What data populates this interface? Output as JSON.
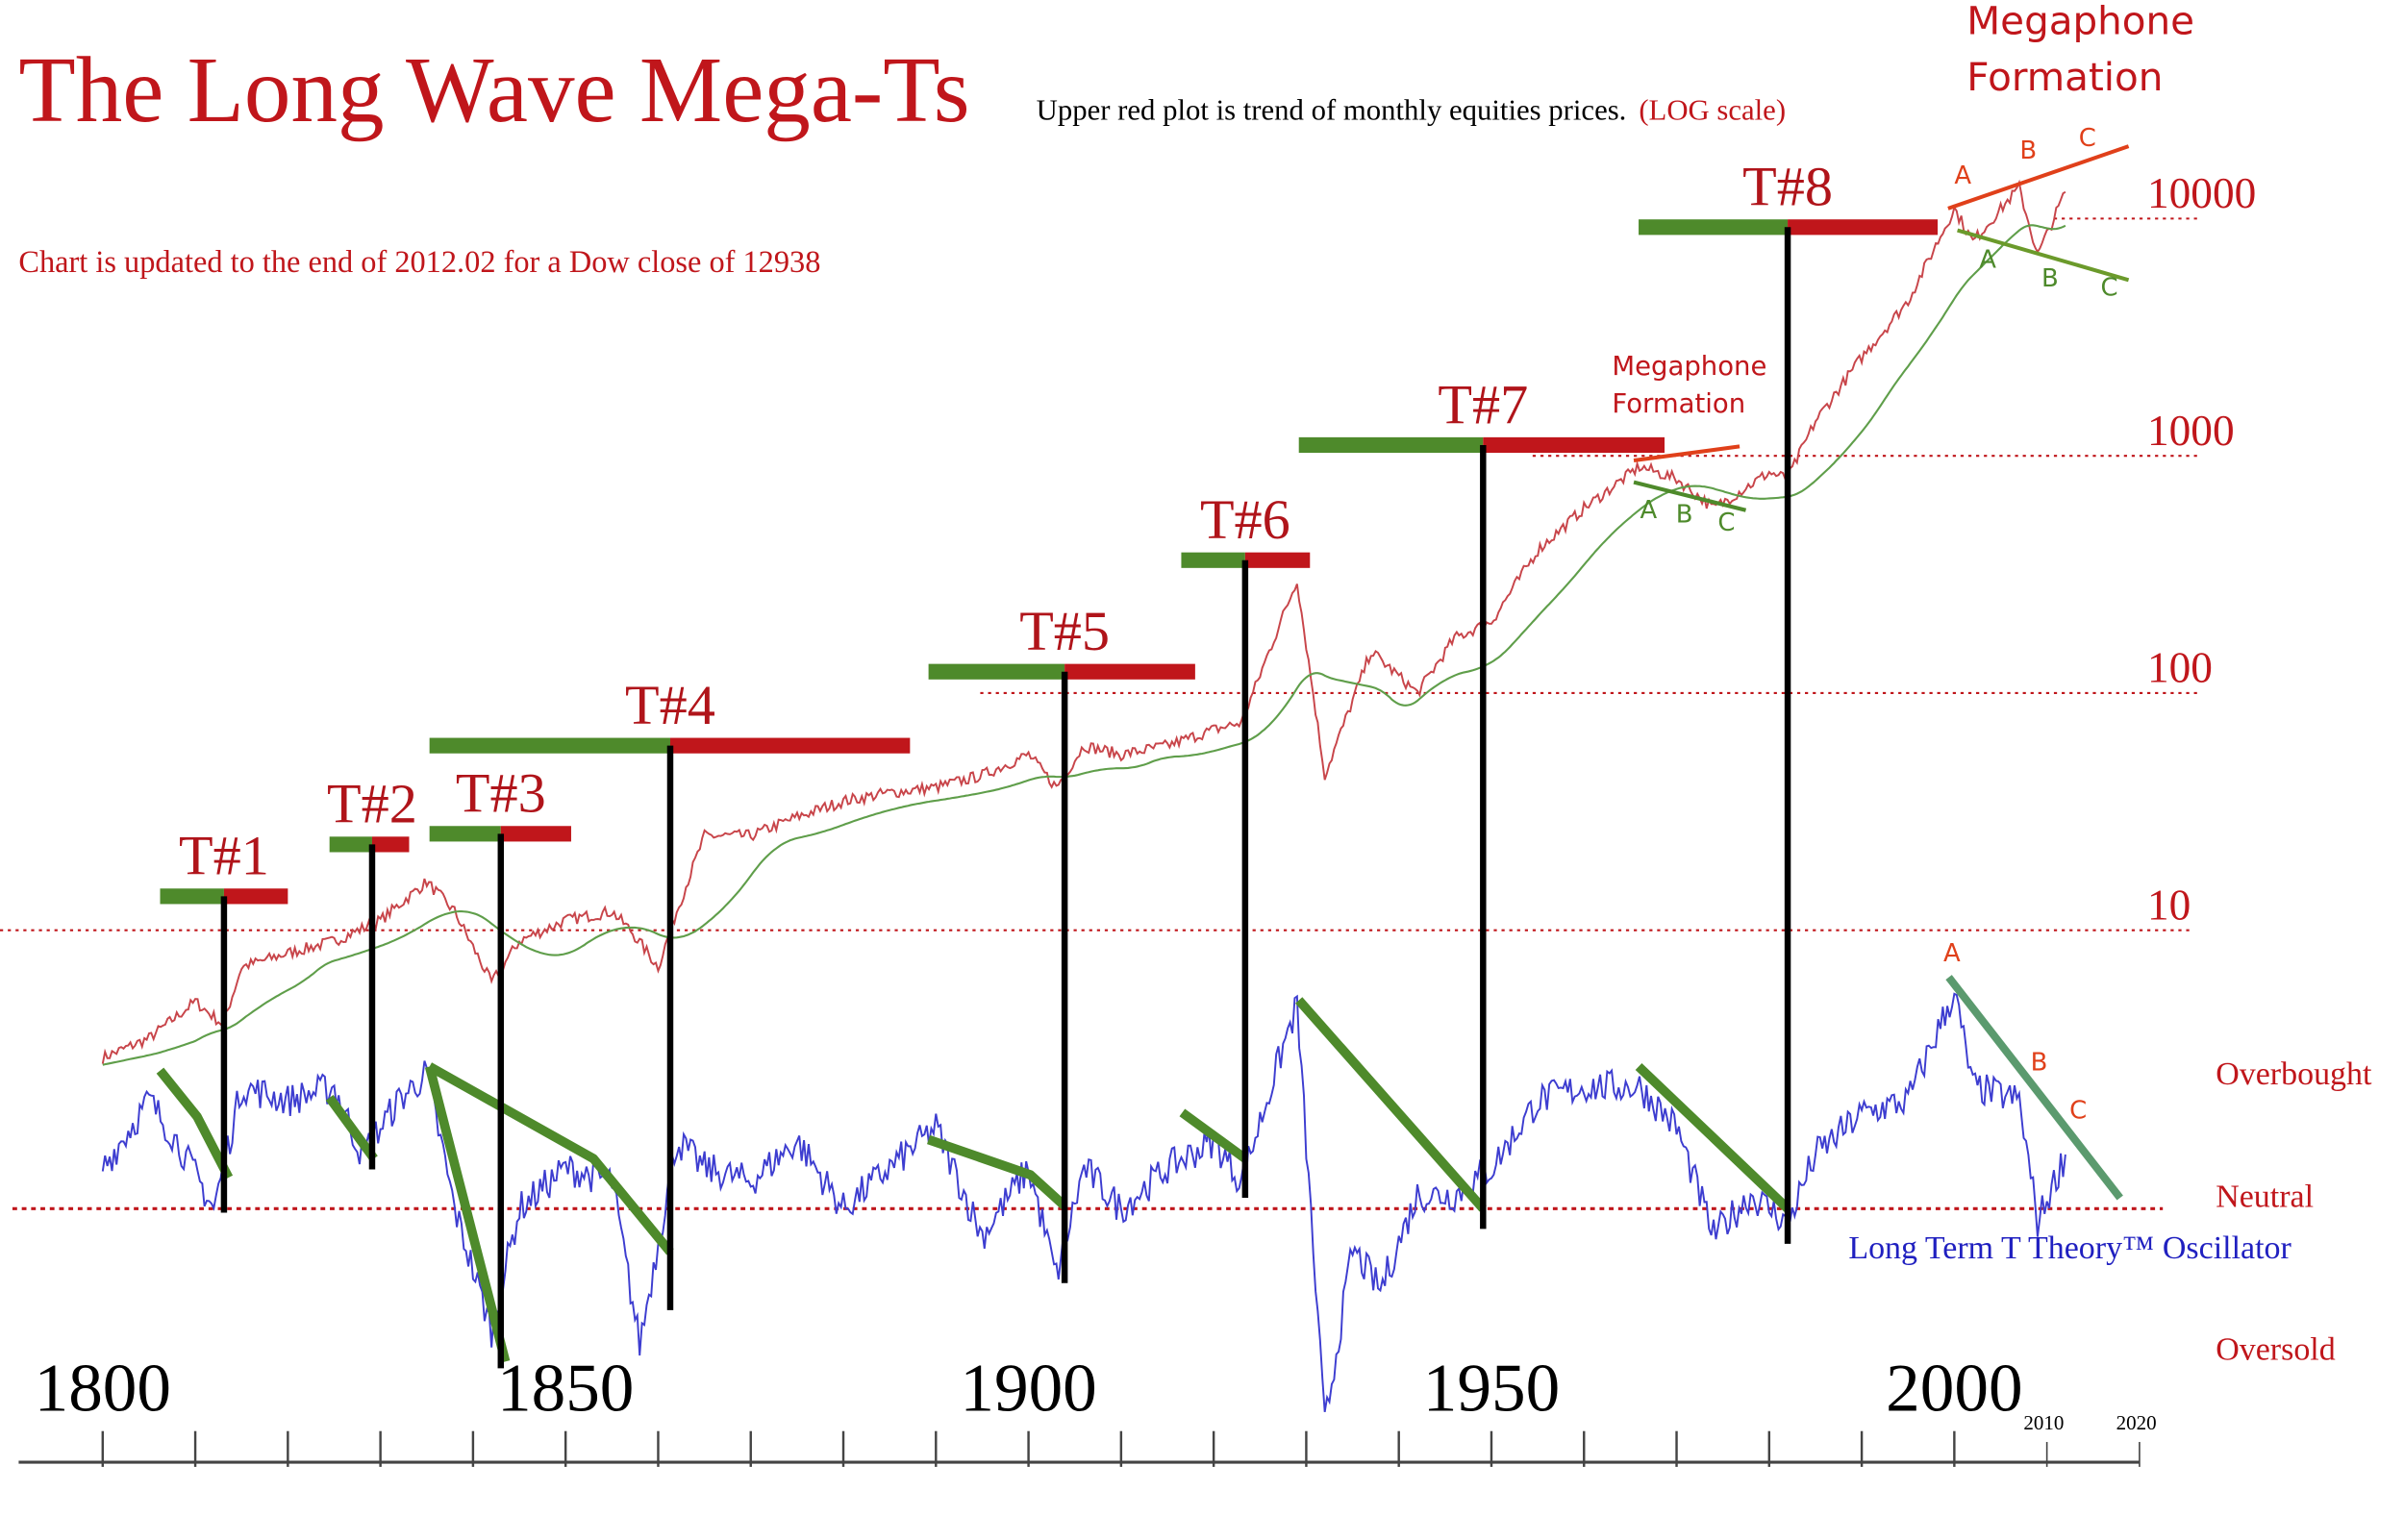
{
  "title": "The Long Wave Mega-Ts",
  "subtitle": "Upper red plot is trend of monthly equities prices.",
  "subtitle_scale": "(LOG scale)",
  "update_note": "Chart is updated to the end of  2012.02 for a Dow close of  12938",
  "colors": {
    "title": "#c0161b",
    "price": "#c8454a",
    "moving_average": "#5f9e4a",
    "oscillator": "#3d3dd0",
    "green_bar": "#4e8a2b",
    "red_bar": "#c0161b",
    "axis": "#444444",
    "trend_green": "#4e8a2b",
    "trend_teal": "#5b9a6e",
    "megaphone_red": "#e0401a"
  },
  "chart_data": [
    {
      "type": "line",
      "y_scale": "log",
      "ylim": [
        1,
        20000
      ],
      "y_ticks": [
        "10",
        "100",
        "1000",
        "10000"
      ],
      "y_tick_values": [
        10,
        100,
        1000,
        10000
      ],
      "points": [
        [
          1800,
          2.9
        ],
        [
          1805,
          3.5
        ],
        [
          1810,
          5
        ],
        [
          1813,
          4
        ],
        [
          1815,
          7
        ],
        [
          1820,
          8
        ],
        [
          1825,
          9
        ],
        [
          1830,
          11
        ],
        [
          1835,
          16
        ],
        [
          1838,
          12
        ],
        [
          1842,
          6
        ],
        [
          1845,
          9
        ],
        [
          1850,
          11
        ],
        [
          1855,
          12
        ],
        [
          1857,
          10
        ],
        [
          1860,
          7
        ],
        [
          1862,
          12
        ],
        [
          1865,
          25
        ],
        [
          1870,
          25
        ],
        [
          1875,
          30
        ],
        [
          1880,
          35
        ],
        [
          1885,
          38
        ],
        [
          1890,
          40
        ],
        [
          1895,
          45
        ],
        [
          1900,
          55
        ],
        [
          1903,
          40
        ],
        [
          1906,
          60
        ],
        [
          1910,
          55
        ],
        [
          1915,
          60
        ],
        [
          1920,
          70
        ],
        [
          1923,
          75
        ],
        [
          1929,
          300
        ],
        [
          1932,
          45
        ],
        [
          1937,
          150
        ],
        [
          1942,
          100
        ],
        [
          1946,
          170
        ],
        [
          1950,
          200
        ],
        [
          1955,
          400
        ],
        [
          1960,
          600
        ],
        [
          1966,
          900
        ],
        [
          1970,
          800
        ],
        [
          1974,
          600
        ],
        [
          1980,
          850
        ],
        [
          1982,
          800
        ],
        [
          1985,
          1400
        ],
        [
          1990,
          2600
        ],
        [
          1995,
          4500
        ],
        [
          2000,
          11000
        ],
        [
          2002,
          8000
        ],
        [
          2007,
          13500
        ],
        [
          2009,
          7000
        ],
        [
          2012,
          12938
        ]
      ]
    },
    {
      "type": "line",
      "name": "Long Term T Theory™ Oscillator",
      "levels": {
        "overbought": 1,
        "neutral": 0,
        "oversold": -1
      },
      "points": [
        [
          1800,
          0.3
        ],
        [
          1805,
          0.8
        ],
        [
          1808,
          0.5
        ],
        [
          1812,
          0
        ],
        [
          1815,
          0.9
        ],
        [
          1820,
          0.8
        ],
        [
          1825,
          0.9
        ],
        [
          1828,
          0.4
        ],
        [
          1832,
          0.8
        ],
        [
          1835,
          1
        ],
        [
          1838,
          0
        ],
        [
          1842,
          -0.9
        ],
        [
          1845,
          0
        ],
        [
          1850,
          0.3
        ],
        [
          1855,
          0.2
        ],
        [
          1858,
          -1
        ],
        [
          1862,
          0.5
        ],
        [
          1865,
          0.3
        ],
        [
          1870,
          0.2
        ],
        [
          1875,
          0.5
        ],
        [
          1880,
          0
        ],
        [
          1885,
          0.3
        ],
        [
          1890,
          0.6
        ],
        [
          1895,
          -0.2
        ],
        [
          1900,
          0.3
        ],
        [
          1903,
          -0.5
        ],
        [
          1906,
          0.3
        ],
        [
          1910,
          0
        ],
        [
          1915,
          0.3
        ],
        [
          1920,
          0.5
        ],
        [
          1923,
          0.2
        ],
        [
          1928,
          1.3
        ],
        [
          1929,
          1.5
        ],
        [
          1932,
          -1.6
        ],
        [
          1935,
          -0.3
        ],
        [
          1938,
          -0.6
        ],
        [
          1942,
          0.1
        ],
        [
          1946,
          0.1
        ],
        [
          1950,
          0.3
        ],
        [
          1955,
          0.8
        ],
        [
          1960,
          0.9
        ],
        [
          1966,
          0.9
        ],
        [
          1970,
          0.6
        ],
        [
          1974,
          -0.2
        ],
        [
          1978,
          0.1
        ],
        [
          1982,
          -0.1
        ],
        [
          1985,
          0.4
        ],
        [
          1990,
          0.7
        ],
        [
          1995,
          0.8
        ],
        [
          2000,
          1.6
        ],
        [
          2002,
          0.9
        ],
        [
          2007,
          0.8
        ],
        [
          2009,
          -0.1
        ],
        [
          2012,
          0.4
        ]
      ]
    }
  ],
  "x_axis": {
    "range": [
      1790,
      2020
    ],
    "major_labels": [
      "1800",
      "1850",
      "1900",
      "1950",
      "2000"
    ],
    "major_values": [
      1800,
      1850,
      1900,
      1950,
      2000
    ],
    "minor_labels": [
      "2010",
      "2020"
    ],
    "minor_values": [
      2010,
      2020
    ],
    "tick_every_years": 10
  },
  "osc_labels": {
    "overbought": "Overbought",
    "neutral": "Neutral",
    "oversold": "Oversold",
    "name": "Long Term T Theory™  Oscillator"
  },
  "ts": [
    {
      "label": "T#1",
      "start": 1806.2,
      "center": 1813.1,
      "end": 1820,
      "level": 13.9,
      "osc_bottom": -0.03
    },
    {
      "label": "T#2",
      "start": 1824.5,
      "center": 1829.1,
      "end": 1833.1,
      "level": 23,
      "osc_bottom": 0.29
    },
    {
      "label": "T#3",
      "start": 1835.3,
      "center": 1843,
      "end": 1850.6,
      "level": 25.5,
      "osc_bottom": -1.18
    },
    {
      "label": "T#4",
      "start": 1835.3,
      "center": 1861.3,
      "end": 1887.2,
      "level": 60,
      "osc_bottom": -0.75
    },
    {
      "label": "T#5",
      "start": 1889.2,
      "center": 1903.9,
      "end": 1918,
      "level": 123,
      "osc_bottom": -0.55
    },
    {
      "label": "T#6",
      "start": 1916.5,
      "center": 1923.4,
      "end": 1930.4,
      "level": 363,
      "osc_bottom": 0.08
    },
    {
      "label": "T#7",
      "start": 1929.2,
      "center": 1949.1,
      "end": 1968.7,
      "level": 1110,
      "osc_bottom": -0.15
    },
    {
      "label": "T#8",
      "start": 1965.9,
      "center": 1982,
      "end": 1998.2,
      "level": 9200,
      "osc_bottom": -0.26
    }
  ],
  "osc_trendlines": [
    [
      [
        1806.2,
        1.02
      ],
      [
        1810.2,
        0.68
      ],
      [
        1813.6,
        0.23
      ]
    ],
    [
      [
        1824.5,
        0.82
      ],
      [
        1829.3,
        0.37
      ]
    ],
    [
      [
        1835.3,
        1.05
      ],
      [
        1843.5,
        -1.13
      ]
    ],
    [
      [
        1835.3,
        1.05
      ],
      [
        1853,
        0.37
      ],
      [
        1861.3,
        -0.32
      ]
    ],
    [
      [
        1889.2,
        0.51
      ],
      [
        1900.2,
        0.25
      ],
      [
        1903.9,
        0.02
      ]
    ],
    [
      [
        1916.6,
        0.71
      ],
      [
        1923.4,
        0.37
      ]
    ],
    [
      [
        1929.2,
        1.54
      ],
      [
        1949.1,
        0
      ]
    ],
    [
      [
        1965.9,
        1.05
      ],
      [
        1982,
        0
      ]
    ]
  ],
  "osc_2000s": {
    "line": [
      [
        1999.4,
        1.71
      ],
      [
        2017.9,
        0.08
      ]
    ],
    "labels": [
      "A",
      "B",
      "C"
    ]
  },
  "megaphone_1970s": {
    "text": [
      "Megaphone",
      "Formation"
    ],
    "labels": [
      "A",
      "B",
      "C"
    ]
  },
  "megaphone_2000s": {
    "text": [
      "Megaphone",
      "Formation"
    ],
    "upper_labels": [
      "A",
      "B",
      "C"
    ],
    "lower_labels": [
      "A",
      "B",
      "C"
    ]
  }
}
